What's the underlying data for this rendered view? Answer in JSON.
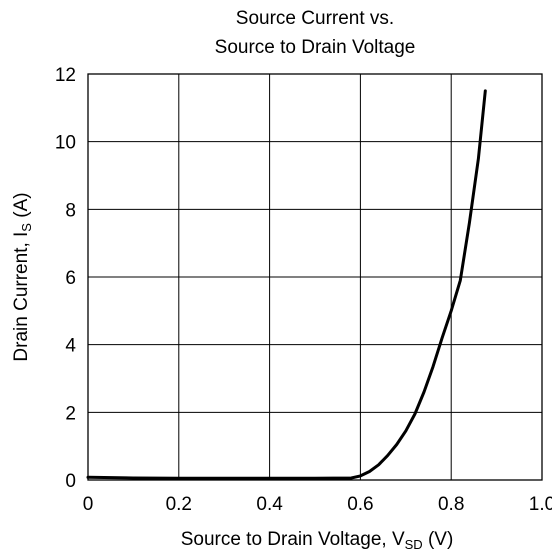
{
  "chart_data": {
    "type": "line",
    "title_lines": [
      "Source Current vs.",
      "Source to Drain Voltage"
    ],
    "xlabel": {
      "main": "Source to Drain Voltage, V",
      "sub": "SD",
      "unit": " (V)"
    },
    "ylabel": {
      "main": "Drain Current, I",
      "sub": "S",
      "unit": " (A)"
    },
    "xlim": [
      0,
      1.0
    ],
    "ylim": [
      0,
      12
    ],
    "x_ticks": [
      "0",
      "0.2",
      "0.4",
      "0.6",
      "0.8",
      "1.0"
    ],
    "y_ticks": [
      "0",
      "2",
      "4",
      "6",
      "8",
      "10",
      "12"
    ],
    "grid": true,
    "series": [
      {
        "color": "#000000",
        "x": [
          0.0,
          0.1,
          0.2,
          0.3,
          0.4,
          0.5,
          0.58,
          0.6,
          0.62,
          0.64,
          0.66,
          0.68,
          0.7,
          0.72,
          0.74,
          0.76,
          0.78,
          0.8,
          0.82,
          0.84,
          0.86,
          0.875
        ],
        "y": [
          0.08,
          0.06,
          0.05,
          0.05,
          0.05,
          0.05,
          0.06,
          0.12,
          0.25,
          0.45,
          0.72,
          1.05,
          1.45,
          1.95,
          2.6,
          3.35,
          4.2,
          5.0,
          5.9,
          7.6,
          9.5,
          11.5
        ]
      }
    ]
  }
}
